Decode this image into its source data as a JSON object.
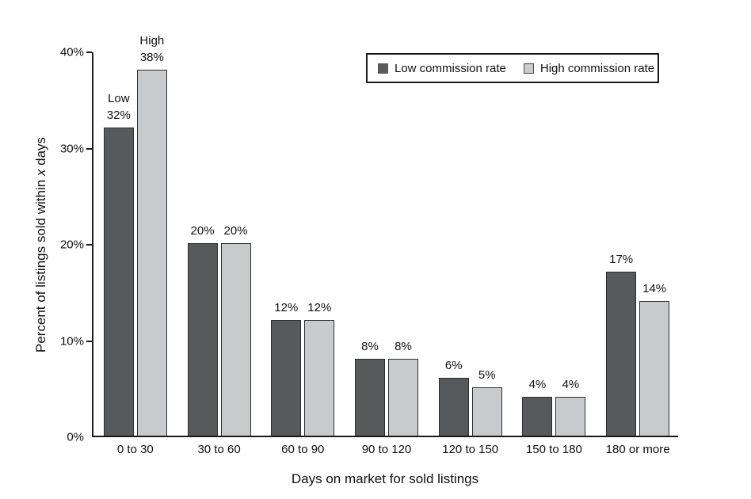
{
  "chart_data": {
    "type": "bar",
    "title": "",
    "categories": [
      "0 to 30",
      "30 to 60",
      "60 to 90",
      "90 to 120",
      "120 to 150",
      "150 to 180",
      "180 or more"
    ],
    "series": [
      {
        "name": "Low commission rate",
        "color": "#58595b",
        "border_color": "#2e2e30",
        "values": [
          32,
          20,
          12,
          8,
          6,
          4,
          17
        ],
        "bar_labels": [
          "Low|32%",
          "20%",
          "12%",
          "8%",
          "6%",
          "4%",
          "17%"
        ]
      },
      {
        "name": "High commission rate",
        "color": "#c9cacc",
        "border_color": "#2e2e30",
        "values": [
          38,
          20,
          12,
          8,
          5,
          4,
          14
        ],
        "bar_labels": [
          "High|38%",
          "20%",
          "12%",
          "8%",
          "5%",
          "4%",
          "14%"
        ]
      }
    ],
    "xlabel": "Days on market for sold listings",
    "ylabel": "Percent of listings sold within x days",
    "ylabel_parts": {
      "prefix": "Percent of listings sold within ",
      "italic": "x",
      "suffix": " days"
    },
    "ylim": [
      0,
      40
    ],
    "yticks": [
      {
        "value": 0,
        "label": "0%"
      },
      {
        "value": 10,
        "label": "10%"
      },
      {
        "value": 20,
        "label": "20%"
      },
      {
        "value": 30,
        "label": "30%"
      },
      {
        "value": 40,
        "label": "40%"
      }
    ],
    "grid": "off",
    "legend_position": "top-right",
    "axis_color": "#1a1a1a",
    "background_color": "#ffffff"
  }
}
